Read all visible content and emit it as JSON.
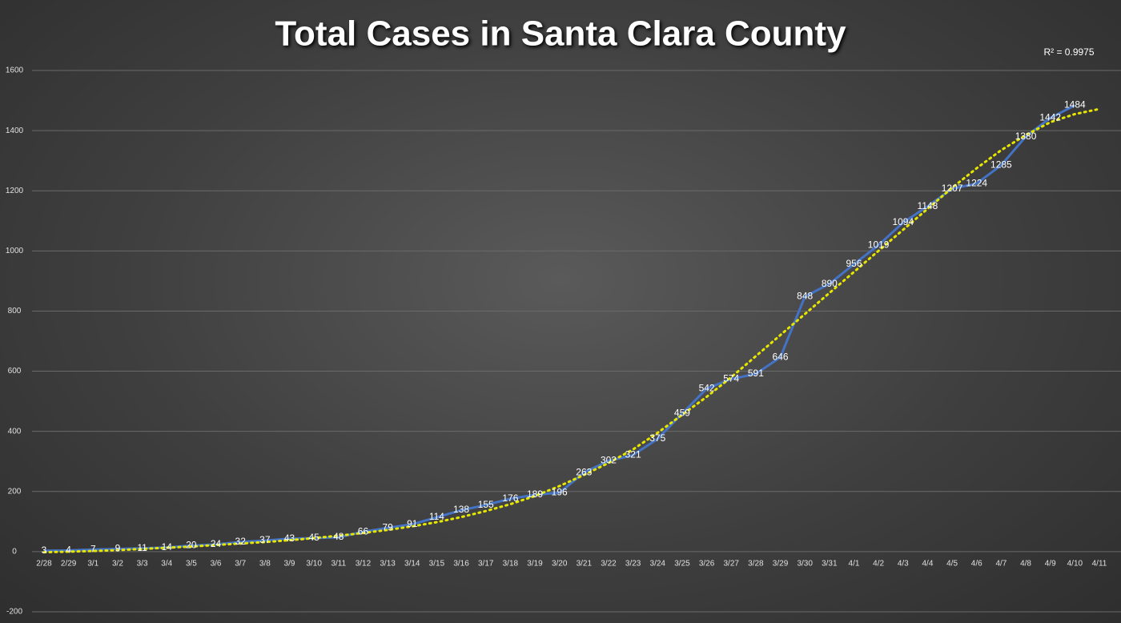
{
  "chart_data": {
    "type": "line",
    "title": "Total Cases in Santa Clara County",
    "annotation": "R² = 0.9975",
    "categories": [
      "2/28",
      "2/29",
      "3/1",
      "3/2",
      "3/3",
      "3/4",
      "3/5",
      "3/6",
      "3/7",
      "3/8",
      "3/9",
      "3/10",
      "3/11",
      "3/12",
      "3/13",
      "3/14",
      "3/15",
      "3/16",
      "3/17",
      "3/18",
      "3/19",
      "3/20",
      "3/21",
      "3/22",
      "3/23",
      "3/24",
      "3/25",
      "3/26",
      "3/27",
      "3/28",
      "3/29",
      "3/30",
      "3/31",
      "4/1",
      "4/2",
      "4/3",
      "4/4",
      "4/5",
      "4/6",
      "4/7",
      "4/8",
      "4/9",
      "4/10",
      "4/11"
    ],
    "values": [
      3,
      4,
      7,
      9,
      11,
      14,
      20,
      24,
      32,
      37,
      43,
      45,
      48,
      66,
      79,
      91,
      114,
      138,
      155,
      176,
      189,
      196,
      263,
      302,
      321,
      375,
      459,
      542,
      574,
      591,
      646,
      848,
      890,
      956,
      1019,
      1094,
      1148,
      1207,
      1224,
      1285,
      1380,
      1442,
      1484,
      null
    ],
    "color": "#4472c4",
    "trendline": {
      "color": "#e6e600",
      "style": "dotted",
      "values": [
        -2,
        0,
        2,
        5,
        9,
        13,
        17,
        22,
        27,
        32,
        38,
        45,
        53,
        62,
        72,
        84,
        98,
        115,
        135,
        158,
        185,
        218,
        255,
        295,
        340,
        395,
        455,
        515,
        580,
        650,
        720,
        790,
        860,
        930,
        1000,
        1070,
        1140,
        1210,
        1275,
        1335,
        1385,
        1428,
        1455,
        1472
      ]
    },
    "ylim": [
      -200,
      1600
    ],
    "yticks": [
      -200,
      0,
      200,
      400,
      600,
      800,
      1000,
      1200,
      1400,
      1600
    ],
    "grid": true
  }
}
